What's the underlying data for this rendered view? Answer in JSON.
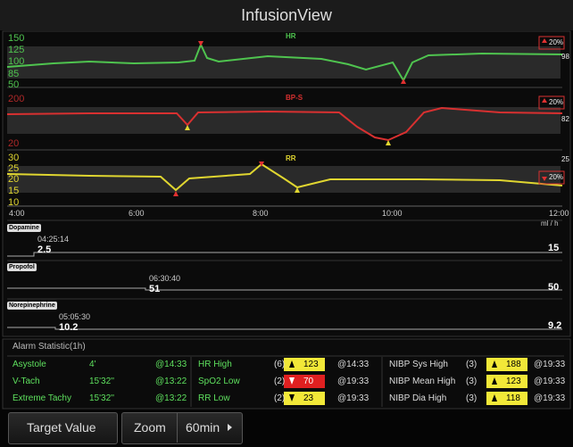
{
  "header": {
    "title": "InfusionView"
  },
  "trends": [
    {
      "label": "HR",
      "axis": [
        "150",
        "125",
        "100",
        "85",
        "50"
      ],
      "alarm": "20%",
      "value": "98"
    },
    {
      "label": "BP-S",
      "axis": [
        "200",
        "20"
      ],
      "alarm": "20%",
      "value": "82"
    },
    {
      "label": "RR",
      "axis": [
        "30",
        "25",
        "20",
        "15",
        "10"
      ],
      "alarm": "20%",
      "value": "25"
    }
  ],
  "time_axis": [
    "4:00",
    "6:00",
    "8:00",
    "10:00",
    "12:00"
  ],
  "unit": "ml / h",
  "drugs": [
    {
      "name": "Dopamine",
      "time": "04:25:14",
      "start": "2.5",
      "current": "15"
    },
    {
      "name": "Propofol",
      "time": "06:30:40",
      "start": "51",
      "current": "50"
    },
    {
      "name": "Norepinephrine",
      "time": "05:05:30",
      "start": "10.2",
      "current": "9.2"
    }
  ],
  "alarm_statistic": {
    "title": "Alarm Statistic(1h)",
    "arrhythmia": [
      {
        "name": "Asystole",
        "duration": "4'",
        "time": "@14:33"
      },
      {
        "name": "V-Tach",
        "duration": "15'32''",
        "time": "@13:22"
      },
      {
        "name": "Extreme Tachy",
        "duration": "15'32''",
        "time": "@13:22"
      }
    ],
    "limits": [
      {
        "name": "HR High",
        "count": "(6)",
        "value": "123",
        "time": "@14:33"
      },
      {
        "name": "SpO2 Low",
        "count": "(2)",
        "value": "70",
        "time": "@19:33"
      },
      {
        "name": "RR Low",
        "count": "(2)",
        "value": "23",
        "time": "@19:33"
      }
    ],
    "nibp": [
      {
        "name": "NIBP Sys High",
        "count": "(3)",
        "value": "188",
        "time": "@19:33"
      },
      {
        "name": "NIBP Mean High",
        "count": "(3)",
        "value": "123",
        "time": "@19:33"
      },
      {
        "name": "NIBP Dia High",
        "count": "(3)",
        "value": "118",
        "time": "@19:33"
      }
    ]
  },
  "buttons": {
    "target": "Target Value",
    "zoom": "Zoom",
    "range": "60min"
  }
}
